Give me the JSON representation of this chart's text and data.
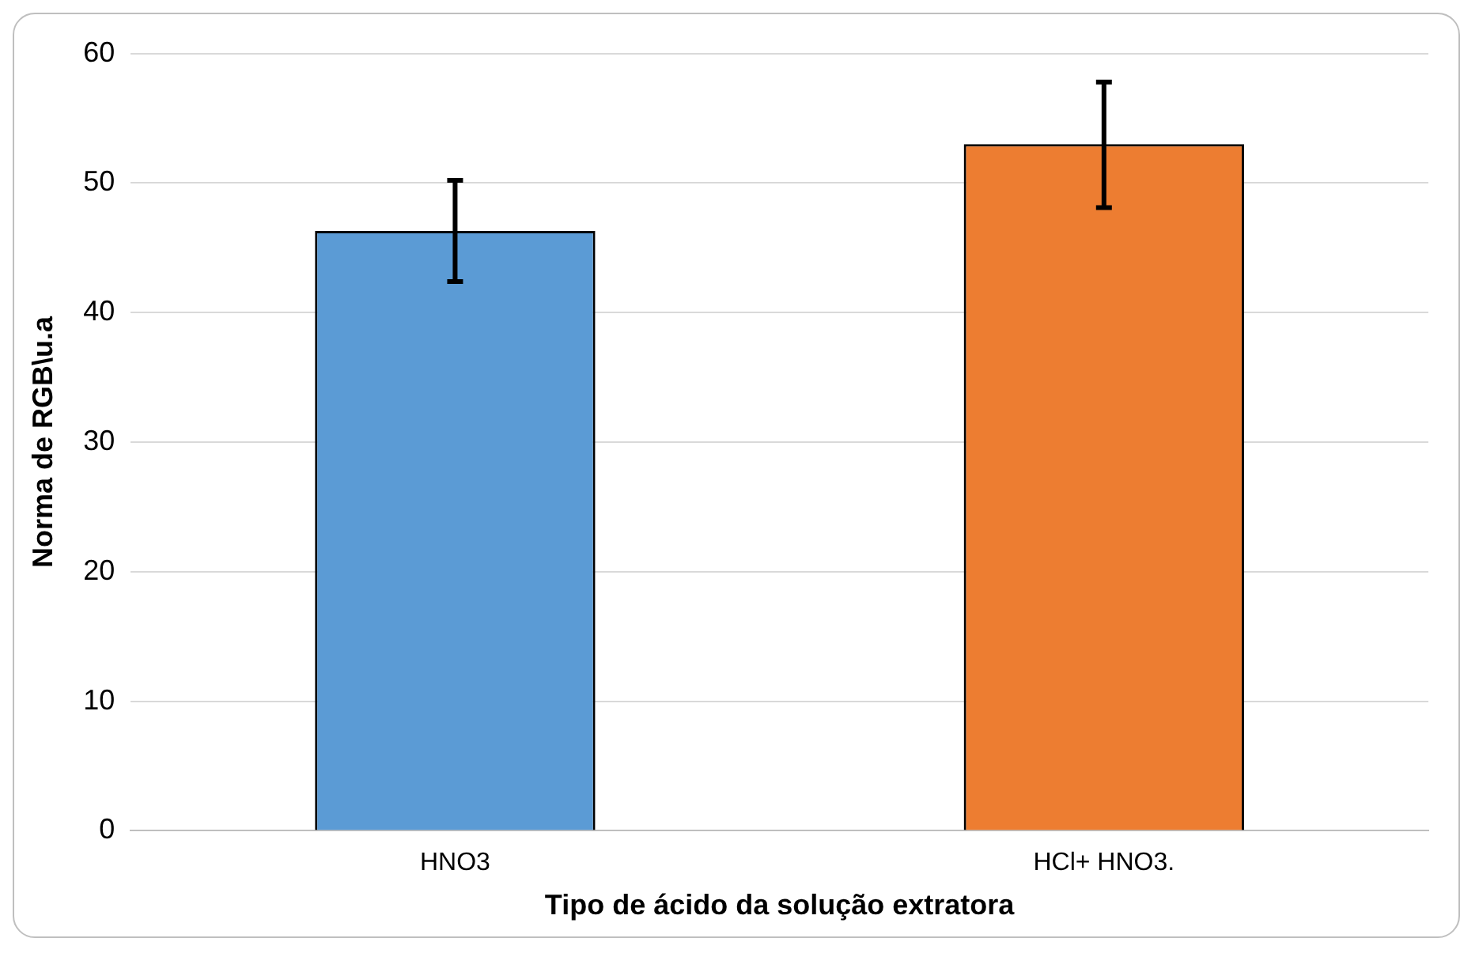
{
  "chart_data": {
    "type": "bar",
    "xlabel": "Tipo de ácido da solução extratora",
    "ylabel": "Norma de RGB\\u.a",
    "categories": [
      "HNO3",
      "HCl+ HNO3."
    ],
    "values": [
      46.3,
      53
    ],
    "colors": [
      "#5b9bd5",
      "#ed7d31"
    ],
    "errors": [
      [
        42.4,
        50.2
      ],
      [
        48.1,
        57.8
      ]
    ],
    "ylim": [
      0,
      60
    ],
    "yticks": [
      0,
      10,
      20,
      30,
      40,
      50,
      60
    ],
    "grid": "y",
    "legend": false
  }
}
